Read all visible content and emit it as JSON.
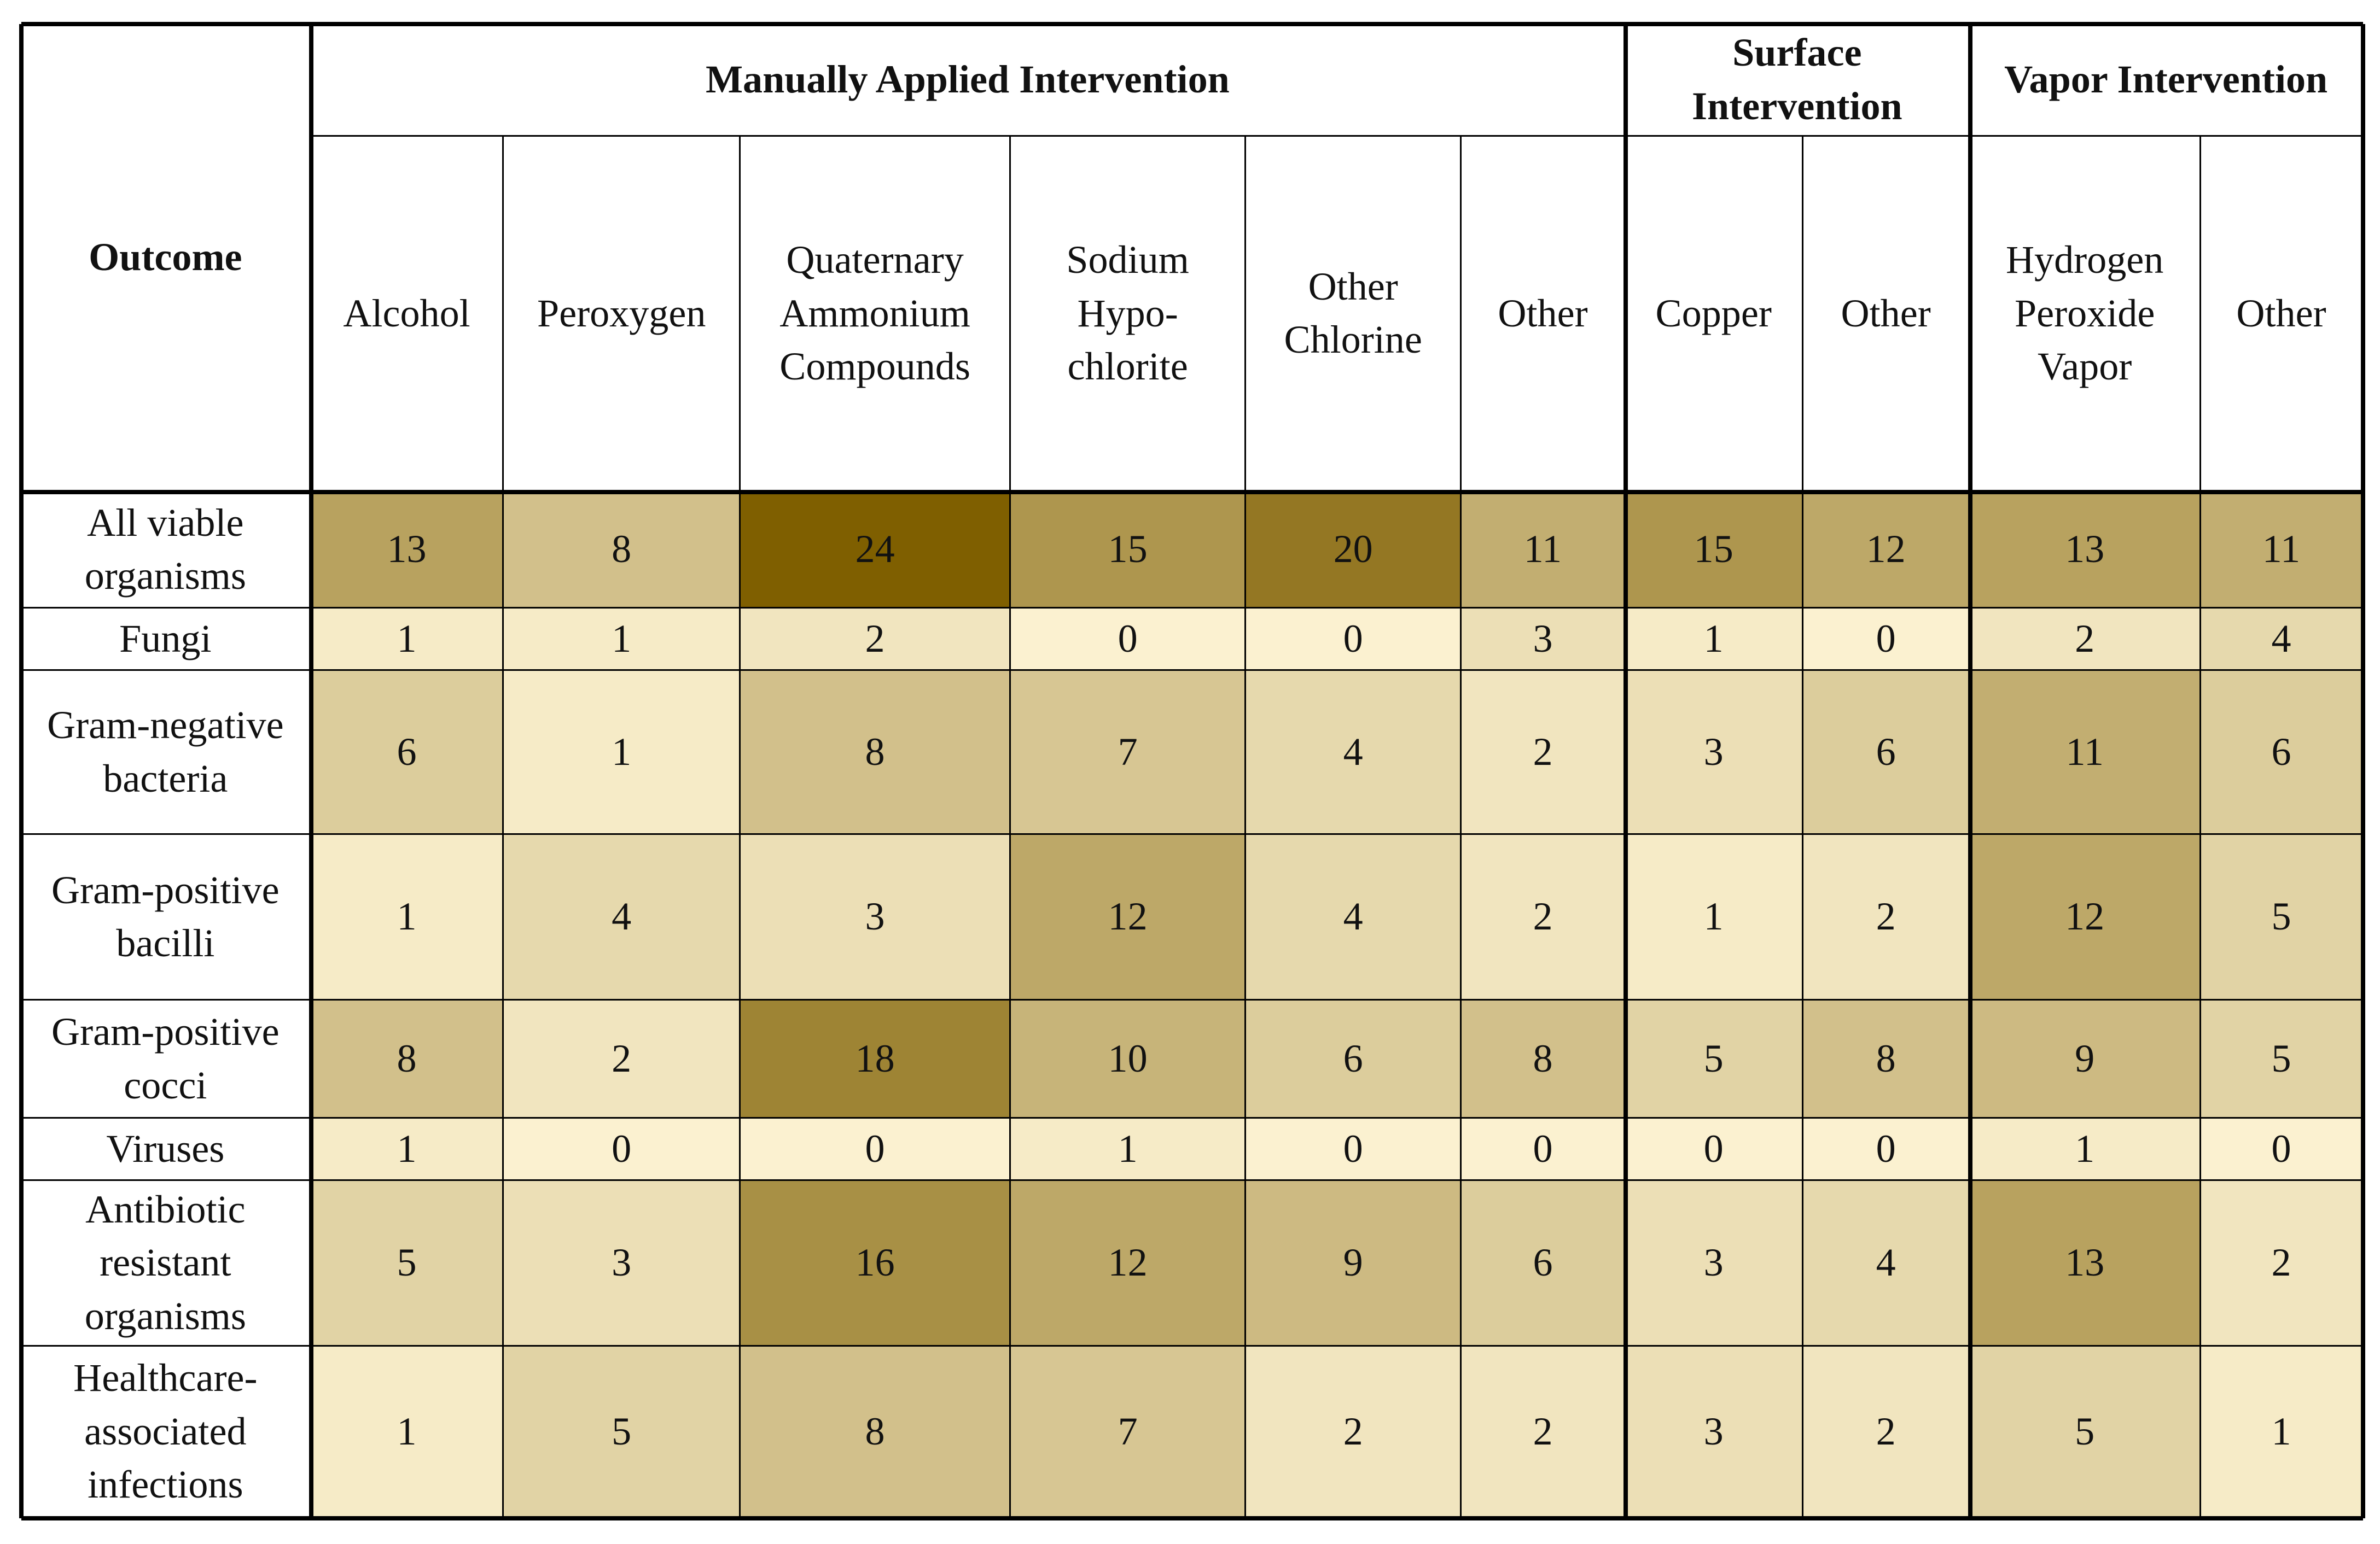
{
  "header": {
    "outcome": "Outcome",
    "groups": [
      {
        "title": "Manually Applied Intervention",
        "columns": [
          "Alcohol",
          "Peroxygen",
          "Quaternary Ammonium Compounds",
          "Sodium Hypo-chlorite",
          "Other Chlorine",
          "Other"
        ]
      },
      {
        "title": "Surface Intervention",
        "columns": [
          "Copper",
          "Other"
        ]
      },
      {
        "title": "Vapor Intervention",
        "columns": [
          "Hydrogen Peroxide Vapor",
          "Other"
        ]
      }
    ]
  },
  "rows": [
    {
      "label": "All viable organisms",
      "values": [
        13,
        8,
        24,
        15,
        20,
        11,
        15,
        12,
        13,
        11
      ]
    },
    {
      "label": "Fungi",
      "values": [
        1,
        1,
        2,
        0,
        0,
        3,
        1,
        0,
        2,
        4
      ]
    },
    {
      "label": "Gram-negative bacteria",
      "values": [
        6,
        1,
        8,
        7,
        4,
        2,
        3,
        6,
        11,
        6
      ]
    },
    {
      "label": "Gram-positive bacilli",
      "values": [
        1,
        4,
        3,
        12,
        4,
        2,
        1,
        2,
        12,
        5
      ]
    },
    {
      "label": "Gram-positive cocci",
      "values": [
        8,
        2,
        18,
        10,
        6,
        8,
        5,
        8,
        9,
        5
      ]
    },
    {
      "label": "Viruses",
      "values": [
        1,
        0,
        0,
        1,
        0,
        0,
        0,
        0,
        1,
        0
      ]
    },
    {
      "label": "Antibiotic resistant organisms",
      "values": [
        5,
        3,
        16,
        12,
        9,
        6,
        3,
        4,
        13,
        2
      ]
    },
    {
      "label": "Healthcare-associated infections",
      "values": [
        1,
        5,
        8,
        7,
        2,
        2,
        3,
        2,
        5,
        1
      ]
    }
  ],
  "color_low": "#fbf1d0",
  "color_high": "#7f5f00"
}
